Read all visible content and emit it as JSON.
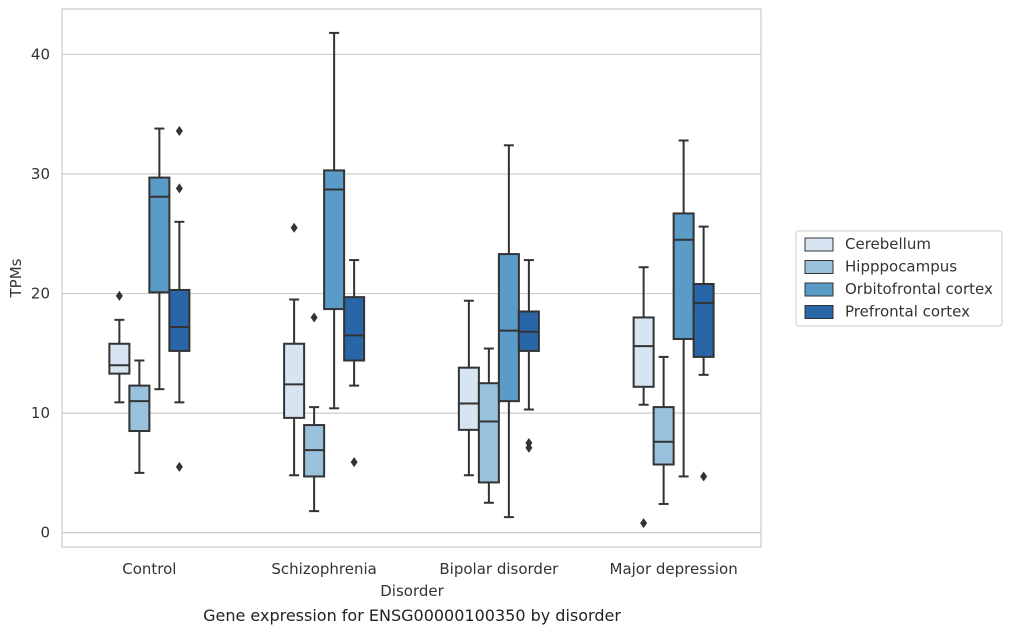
{
  "chart_data": {
    "type": "box",
    "xlabel": "Disorder",
    "ylabel": "TPMs",
    "caption": "Gene expression for ENSG00000100350 by disorder",
    "ylim": [
      -1.2,
      43.8
    ],
    "yticks": [
      0,
      10,
      20,
      30,
      40
    ],
    "grid": "horizontal",
    "legend_position": "right",
    "categories": [
      "Control",
      "Schizophrenia",
      "Bipolar disorder",
      "Major depression"
    ],
    "series": [
      {
        "name": "Cerebellum",
        "color": "#d7e5f3",
        "boxes": [
          {
            "whisker_low": 10.9,
            "q1": 13.3,
            "median": 14.0,
            "q3": 15.8,
            "whisker_high": 17.8,
            "outliers": [
              19.8
            ]
          },
          {
            "whisker_low": 4.8,
            "q1": 9.6,
            "median": 12.4,
            "q3": 15.8,
            "whisker_high": 19.5,
            "outliers": [
              25.5
            ]
          },
          {
            "whisker_low": 4.8,
            "q1": 8.6,
            "median": 10.8,
            "q3": 13.8,
            "whisker_high": 19.4,
            "outliers": []
          },
          {
            "whisker_low": 10.7,
            "q1": 12.2,
            "median": 15.6,
            "q3": 18.0,
            "whisker_high": 22.2,
            "outliers": [
              0.8
            ]
          }
        ]
      },
      {
        "name": "Hipppocampus",
        "color": "#9ac1dc",
        "boxes": [
          {
            "whisker_low": 5.0,
            "q1": 8.5,
            "median": 11.0,
            "q3": 12.3,
            "whisker_high": 14.4,
            "outliers": []
          },
          {
            "whisker_low": 1.8,
            "q1": 4.7,
            "median": 6.9,
            "q3": 9.0,
            "whisker_high": 10.5,
            "outliers": [
              18.0
            ]
          },
          {
            "whisker_low": 2.5,
            "q1": 4.2,
            "median": 9.3,
            "q3": 12.5,
            "whisker_high": 15.4,
            "outliers": []
          },
          {
            "whisker_low": 2.4,
            "q1": 5.7,
            "median": 7.6,
            "q3": 10.5,
            "whisker_high": 14.7,
            "outliers": []
          }
        ]
      },
      {
        "name": "Orbitofrontal cortex",
        "color": "#5a9bc8",
        "boxes": [
          {
            "whisker_low": 12.0,
            "q1": 20.1,
            "median": 28.1,
            "q3": 29.7,
            "whisker_high": 33.8,
            "outliers": []
          },
          {
            "whisker_low": 10.4,
            "q1": 18.7,
            "median": 28.7,
            "q3": 30.3,
            "whisker_high": 41.8,
            "outliers": []
          },
          {
            "whisker_low": 1.3,
            "q1": 11.0,
            "median": 16.9,
            "q3": 23.3,
            "whisker_high": 32.4,
            "outliers": []
          },
          {
            "whisker_low": 4.7,
            "q1": 16.2,
            "median": 24.5,
            "q3": 26.7,
            "whisker_high": 32.8,
            "outliers": []
          }
        ]
      },
      {
        "name": "Prefrontal cortex",
        "color": "#2966a8",
        "boxes": [
          {
            "whisker_low": 10.9,
            "q1": 15.2,
            "median": 17.2,
            "q3": 20.3,
            "whisker_high": 26.0,
            "outliers": [
              33.6,
              28.8,
              5.5
            ]
          },
          {
            "whisker_low": 12.3,
            "q1": 14.4,
            "median": 16.5,
            "q3": 19.7,
            "whisker_high": 22.8,
            "outliers": [
              5.9
            ]
          },
          {
            "whisker_low": 10.3,
            "q1": 15.2,
            "median": 16.8,
            "q3": 18.5,
            "whisker_high": 22.8,
            "outliers": [
              7.5,
              7.1
            ]
          },
          {
            "whisker_low": 13.2,
            "q1": 14.7,
            "median": 19.2,
            "q3": 20.8,
            "whisker_high": 25.6,
            "outliers": [
              4.7
            ]
          }
        ]
      }
    ]
  }
}
